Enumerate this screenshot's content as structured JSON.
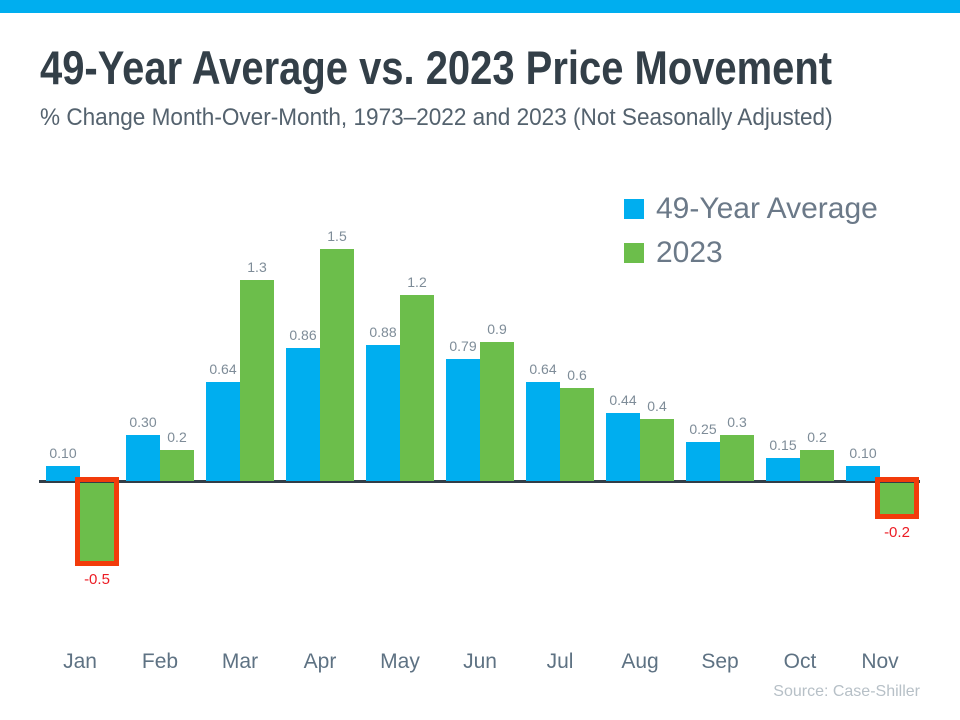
{
  "page": {
    "accent_bar_color": "#00AEEF"
  },
  "chart_data": {
    "type": "bar",
    "title": "49-Year Average vs. 2023 Price Movement",
    "subtitle": "% Change Month-Over-Month, 1973–2022 and 2023 (Not Seasonally Adjusted)",
    "categories": [
      "Jan",
      "Feb",
      "Mar",
      "Apr",
      "May",
      "Jun",
      "Jul",
      "Aug",
      "Sep",
      "Oct",
      "Nov"
    ],
    "series": [
      {
        "name": "49-Year Average",
        "color": "#00AEEF",
        "values": [
          0.1,
          0.3,
          0.64,
          0.86,
          0.88,
          0.79,
          0.64,
          0.44,
          0.25,
          0.15,
          0.1
        ],
        "labels": [
          "0.10",
          "0.30",
          "0.64",
          "0.86",
          "0.88",
          "0.79",
          "0.64",
          "0.44",
          "0.25",
          "0.15",
          "0.10"
        ]
      },
      {
        "name": "2023",
        "color": "#6CBE4B",
        "values": [
          -0.5,
          0.2,
          1.3,
          1.5,
          1.2,
          0.9,
          0.6,
          0.4,
          0.3,
          0.2,
          -0.2
        ],
        "labels": [
          "-0.5",
          "0.2",
          "1.3",
          "1.5",
          "1.2",
          "0.9",
          "0.6",
          "0.4",
          "0.3",
          "0.2",
          "-0.2"
        ]
      }
    ],
    "ylim": [
      -0.5,
      1.5
    ],
    "grid": false,
    "legend_position": "top-right",
    "highlight": {
      "rule": "negative 2023 values outlined",
      "months": [
        "Jan",
        "Nov"
      ],
      "box_color": "#F23B0B",
      "text_color": "#EC1C24"
    },
    "source": "Source: Case-Shiller"
  }
}
